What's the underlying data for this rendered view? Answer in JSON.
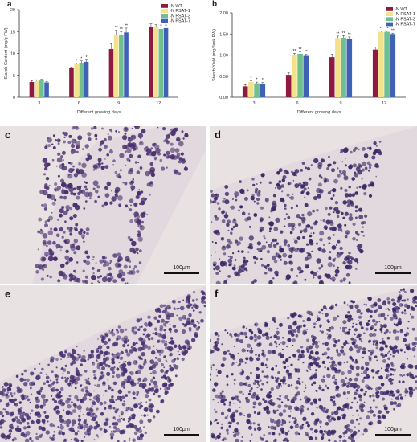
{
  "chart_data": [
    {
      "panel": "a",
      "type": "bar",
      "title": "",
      "xlabel": "Different growing days",
      "ylabel": "Starch Content (mg/g FW)",
      "ylim": [
        0,
        20
      ],
      "yticks": [
        "0",
        "5",
        "10",
        "15",
        "20"
      ],
      "categories": [
        "3",
        "6",
        "9",
        "12"
      ],
      "legend_position": "top-right",
      "series": [
        {
          "name": "-N WT",
          "color": "#8e1b3f",
          "values": [
            3.5,
            6.7,
            11.0,
            16.0
          ],
          "errors": [
            0.3,
            0.2,
            1.2,
            0.8
          ],
          "marks": [
            "",
            "",
            "",
            ""
          ]
        },
        {
          "name": "-N PSAT-1",
          "color": "#f2e28a",
          "values": [
            3.7,
            7.5,
            14.3,
            16.0
          ],
          "errors": [
            0.3,
            0.3,
            1.0,
            0.6
          ],
          "marks": [
            "",
            "*",
            "**",
            ""
          ]
        },
        {
          "name": "-N PSAT-3",
          "color": "#6fbf8f",
          "values": [
            3.9,
            7.8,
            14.2,
            15.6
          ],
          "errors": [
            0.2,
            0.5,
            0.8,
            0.9
          ],
          "marks": [
            "",
            "*",
            "**",
            ""
          ]
        },
        {
          "name": "-N PSAT-7",
          "color": "#3f62b5",
          "values": [
            3.4,
            8.1,
            14.8,
            15.8
          ],
          "errors": [
            0.2,
            0.4,
            1.0,
            0.7
          ],
          "marks": [
            "",
            "*",
            "**",
            ""
          ]
        }
      ]
    },
    {
      "panel": "b",
      "type": "bar",
      "title": "",
      "xlabel": "Different growing days",
      "ylabel": "Starch Yield (mg/flask FW)",
      "ylim": [
        0,
        2.0
      ],
      "yticks": [
        "0.00",
        "0.50",
        "1.00",
        "1.50",
        "2.00"
      ],
      "categories": [
        "3",
        "6",
        "9",
        "12"
      ],
      "legend_position": "top-right",
      "series": [
        {
          "name": "-N WT",
          "color": "#8e1b3f",
          "values": [
            0.26,
            0.53,
            0.95,
            1.13
          ],
          "errors": [
            0.04,
            0.05,
            0.07,
            0.06
          ],
          "marks": [
            "",
            "",
            "",
            ""
          ]
        },
        {
          "name": "-N PSAT-1",
          "color": "#f2e28a",
          "values": [
            0.36,
            1.0,
            1.4,
            1.55
          ],
          "errors": [
            0.03,
            0.04,
            0.05,
            0.02
          ],
          "marks": [
            "*",
            "**",
            "**",
            "**"
          ]
        },
        {
          "name": "-N PSAT-3",
          "color": "#6fbf8f",
          "values": [
            0.33,
            1.03,
            1.41,
            1.55
          ],
          "errors": [
            0.03,
            0.05,
            0.05,
            0.02
          ],
          "marks": [
            "*",
            "**",
            "**",
            "**"
          ]
        },
        {
          "name": "-N PSAT-7",
          "color": "#3f62b5",
          "values": [
            0.32,
            0.98,
            1.38,
            1.5
          ],
          "errors": [
            0.03,
            0.04,
            0.05,
            0.02
          ],
          "marks": [
            "*",
            "**",
            "**",
            "**"
          ]
        }
      ]
    }
  ],
  "micrographs": [
    {
      "letter": "c",
      "scale_label": "100μm",
      "stain": "#4a2f6e"
    },
    {
      "letter": "d",
      "scale_label": "100μm",
      "stain": "#3f2a66"
    },
    {
      "letter": "e",
      "scale_label": "100μm",
      "stain": "#4b3272"
    },
    {
      "letter": "f",
      "scale_label": "100μm",
      "stain": "#3d2a68"
    }
  ]
}
